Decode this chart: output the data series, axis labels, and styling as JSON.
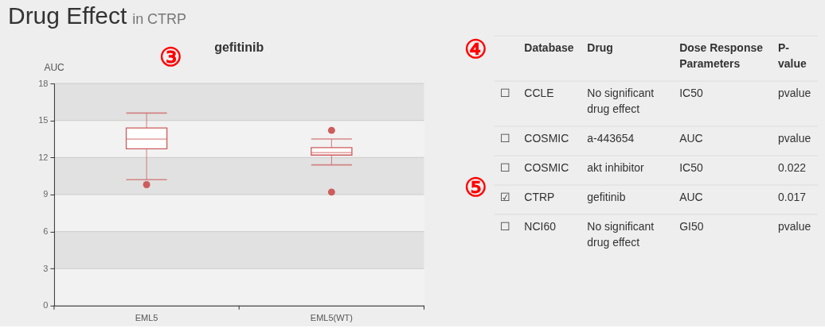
{
  "chart_data": [
    {
      "type": "other",
      "title": "Drug Effect",
      "subtitle": "in CTRP"
    },
    {
      "type": "box",
      "title": "gefitinib",
      "ylabel": "AUC",
      "categories": [
        "EML5",
        "EML5(WT)"
      ],
      "color": "#cd5c5c",
      "boxes": [
        {
          "low": 10.2,
          "q1": 12.7,
          "median": 13.5,
          "q3": 14.4,
          "high": 15.6,
          "outliers": [
            9.8
          ]
        },
        {
          "low": 11.4,
          "q1": 12.2,
          "median": 12.4,
          "q3": 12.8,
          "high": 13.5,
          "outliers": [
            14.2,
            9.2
          ]
        }
      ],
      "ylim": [
        0,
        18
      ],
      "yticks": [
        0,
        3,
        6,
        9,
        12,
        15,
        18
      ],
      "grid": "y",
      "bands": [
        {
          "axis": "y",
          "from": 15,
          "to": 18,
          "color": "#e1e1e1"
        },
        {
          "axis": "y",
          "from": 9,
          "to": 12,
          "color": "#e1e1e1"
        },
        {
          "axis": "y",
          "from": 3,
          "to": 6,
          "color": "#e1e1e1"
        }
      ],
      "annotations": [
        "③"
      ]
    },
    {
      "type": "other",
      "categories": [
        null,
        "Database",
        "Drug",
        "Dose Response Parameters",
        "P-value"
      ],
      "cell_labels": [
        [
          "☐",
          "CCLE",
          "No significant drug effect",
          "IC50",
          "pvalue"
        ],
        [
          "☐",
          "COSMIC",
          "a-443654",
          "AUC",
          "pvalue"
        ],
        [
          "☐",
          "COSMIC",
          "akt inhibitor",
          "IC50",
          "0.022"
        ],
        [
          "☑",
          "CTRP",
          "gefitinib",
          "AUC",
          "0.017"
        ],
        [
          "☐",
          "NCI60",
          "No significant drug effect",
          "GI50",
          "pvalue"
        ]
      ],
      "annotations": [
        "④",
        "⑤"
      ]
    }
  ]
}
